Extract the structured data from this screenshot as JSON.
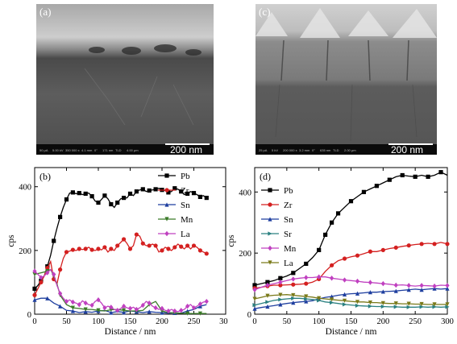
{
  "sem_panels": [
    {
      "letter": "(a)",
      "scale_label": "200 nm",
      "meta": [
        "50 μA",
        "5.00 kV",
        "350 000 x",
        "4.1 mm",
        "0°",
        "171 nm",
        "TLD",
        "4.00 μm"
      ]
    },
    {
      "letter": "(c)",
      "scale_label": "200 nm",
      "meta": [
        "25 pA",
        "5 kV",
        "200 000 x",
        "3.2 mm",
        "0°",
        "635 nm",
        "TLD",
        "2.00 μm"
      ]
    }
  ],
  "chart_data": [
    {
      "panel_label": "(b)",
      "type": "line",
      "xlabel": "Distance / nm",
      "ylabel": "cps",
      "xlim": [
        0,
        300
      ],
      "ylim": [
        0,
        460
      ],
      "xticks": [
        0,
        50,
        100,
        150,
        200,
        250,
        300
      ],
      "yticks": [
        0,
        200,
        400
      ],
      "legend_position": "top-right",
      "series": [
        {
          "name": "Pb",
          "color": "#000000",
          "marker": "square",
          "x": [
            0,
            5,
            10,
            15,
            20,
            25,
            30,
            35,
            40,
            45,
            50,
            55,
            60,
            65,
            70,
            75,
            80,
            85,
            90,
            95,
            100,
            105,
            110,
            115,
            120,
            125,
            130,
            135,
            140,
            145,
            150,
            155,
            160,
            165,
            170,
            175,
            180,
            185,
            190,
            195,
            200,
            205,
            210,
            215,
            220,
            225,
            230,
            235,
            240,
            245,
            250,
            255,
            260,
            265,
            270
          ],
          "y": [
            80,
            90,
            105,
            120,
            150,
            185,
            230,
            270,
            305,
            335,
            360,
            380,
            382,
            378,
            380,
            375,
            378,
            380,
            370,
            355,
            350,
            360,
            372,
            362,
            345,
            335,
            350,
            362,
            365,
            365,
            378,
            372,
            385,
            390,
            392,
            385,
            388,
            390,
            392,
            395,
            390,
            388,
            382,
            385,
            395,
            392,
            385,
            375,
            378,
            385,
            380,
            375,
            368,
            372,
            365
          ]
        },
        {
          "name": "Zr",
          "color": "#d42020",
          "marker": "circle",
          "x": [
            0,
            5,
            10,
            15,
            20,
            25,
            30,
            35,
            40,
            45,
            50,
            55,
            60,
            65,
            70,
            75,
            80,
            85,
            90,
            95,
            100,
            105,
            110,
            115,
            120,
            125,
            130,
            135,
            140,
            145,
            150,
            155,
            160,
            165,
            170,
            175,
            180,
            185,
            190,
            195,
            200,
            205,
            210,
            215,
            220,
            225,
            230,
            235,
            240,
            245,
            250,
            255,
            260,
            265,
            270
          ],
          "y": [
            60,
            80,
            100,
            120,
            145,
            165,
            110,
            95,
            140,
            175,
            195,
            198,
            202,
            200,
            205,
            203,
            205,
            210,
            202,
            200,
            205,
            202,
            210,
            195,
            205,
            200,
            215,
            225,
            235,
            222,
            205,
            215,
            250,
            245,
            222,
            215,
            215,
            220,
            215,
            195,
            200,
            210,
            205,
            200,
            210,
            220,
            212,
            205,
            215,
            205,
            215,
            210,
            200,
            195,
            190
          ]
        },
        {
          "name": "Sn",
          "color": "#1f3f9f",
          "marker": "triangle",
          "x": [
            0,
            10,
            20,
            30,
            40,
            50,
            60,
            70,
            80,
            90,
            100,
            110,
            120,
            130,
            140,
            150,
            160,
            170,
            180,
            190,
            200,
            210,
            220,
            230,
            240,
            250,
            260,
            270
          ],
          "y": [
            45,
            50,
            50,
            35,
            25,
            12,
            10,
            5,
            8,
            6,
            10,
            12,
            5,
            8,
            6,
            10,
            8,
            5,
            8,
            6,
            5,
            3,
            4,
            3,
            10,
            15,
            25,
            30
          ]
        },
        {
          "name": "Mn",
          "color": "#3a7a28",
          "marker": "triangle-down",
          "x": [
            0,
            10,
            20,
            25,
            30,
            35,
            40,
            50,
            60,
            70,
            80,
            90,
            100,
            110,
            120,
            130,
            140,
            150,
            160,
            170,
            180,
            190,
            200,
            210,
            220,
            230,
            240,
            250,
            260,
            270
          ],
          "y": [
            125,
            130,
            135,
            140,
            120,
            95,
            60,
            30,
            20,
            18,
            15,
            15,
            12,
            10,
            14,
            15,
            12,
            10,
            10,
            12,
            30,
            40,
            10,
            5,
            4,
            3,
            2,
            2,
            2,
            2
          ]
        },
        {
          "name": "La",
          "color": "#c040c0",
          "marker": "diamond",
          "x": [
            0,
            5,
            10,
            15,
            20,
            25,
            30,
            35,
            40,
            45,
            50,
            55,
            60,
            65,
            70,
            75,
            80,
            85,
            90,
            95,
            100,
            105,
            110,
            115,
            120,
            125,
            130,
            135,
            140,
            145,
            150,
            155,
            160,
            165,
            170,
            175,
            180,
            185,
            190,
            195,
            200,
            205,
            210,
            215,
            220,
            225,
            230,
            235,
            240,
            245,
            250,
            255,
            260,
            265,
            270
          ],
          "y": [
            135,
            125,
            115,
            120,
            130,
            140,
            125,
            90,
            65,
            50,
            40,
            45,
            38,
            35,
            30,
            42,
            35,
            30,
            28,
            40,
            45,
            35,
            20,
            25,
            22,
            15,
            12,
            18,
            25,
            20,
            18,
            22,
            15,
            20,
            28,
            40,
            35,
            25,
            20,
            15,
            18,
            12,
            10,
            15,
            10,
            8,
            12,
            15,
            25,
            30,
            20,
            25,
            32,
            38,
            40
          ]
        }
      ]
    },
    {
      "panel_label": "(d)",
      "type": "line",
      "xlabel": "Distance / nm",
      "ylabel": "cps",
      "xlim": [
        0,
        300
      ],
      "ylim": [
        0,
        480
      ],
      "xticks": [
        0,
        50,
        100,
        150,
        200,
        250,
        300
      ],
      "yticks": [
        0,
        200,
        400
      ],
      "legend_position": "top-left",
      "series": [
        {
          "name": "Pb",
          "color": "#000000",
          "marker": "square",
          "x": [
            0,
            10,
            20,
            30,
            40,
            50,
            60,
            70,
            80,
            90,
            100,
            105,
            110,
            115,
            120,
            125,
            130,
            140,
            150,
            160,
            170,
            180,
            190,
            200,
            210,
            220,
            230,
            240,
            250,
            260,
            270,
            280,
            290,
            300
          ],
          "y": [
            95,
            100,
            105,
            110,
            118,
            125,
            135,
            150,
            165,
            185,
            210,
            235,
            260,
            280,
            300,
            315,
            330,
            350,
            370,
            385,
            400,
            410,
            420,
            430,
            440,
            450,
            455,
            452,
            450,
            455,
            450,
            455,
            465,
            455
          ]
        },
        {
          "name": "Zr",
          "color": "#d42020",
          "marker": "circle",
          "x": [
            0,
            10,
            20,
            30,
            40,
            50,
            60,
            70,
            80,
            90,
            100,
            110,
            120,
            130,
            140,
            150,
            160,
            170,
            180,
            190,
            200,
            210,
            220,
            230,
            240,
            250,
            260,
            270,
            280,
            290,
            300
          ],
          "y": [
            85,
            88,
            92,
            95,
            95,
            96,
            97,
            98,
            100,
            105,
            115,
            140,
            160,
            175,
            182,
            188,
            192,
            198,
            205,
            205,
            210,
            215,
            218,
            222,
            225,
            228,
            230,
            232,
            230,
            235,
            230
          ]
        },
        {
          "name": "Sn",
          "color": "#1f3f9f",
          "marker": "triangle",
          "x": [
            0,
            10,
            20,
            30,
            40,
            50,
            60,
            70,
            80,
            90,
            100,
            110,
            120,
            130,
            140,
            150,
            160,
            170,
            180,
            190,
            200,
            210,
            220,
            230,
            240,
            250,
            260,
            270,
            280,
            290,
            300
          ],
          "y": [
            18,
            22,
            25,
            28,
            32,
            35,
            38,
            40,
            42,
            44,
            50,
            55,
            58,
            62,
            65,
            67,
            68,
            70,
            72,
            72,
            74,
            75,
            76,
            78,
            80,
            82,
            80,
            82,
            84,
            82,
            84
          ]
        },
        {
          "name": "Sr",
          "color": "#2a8080",
          "marker": "triangle-right",
          "x": [
            0,
            10,
            20,
            30,
            40,
            50,
            60,
            70,
            80,
            90,
            100,
            110,
            120,
            130,
            140,
            150,
            160,
            170,
            180,
            190,
            200,
            210,
            220,
            230,
            240,
            250,
            260,
            270,
            280,
            290,
            300
          ],
          "y": [
            30,
            35,
            40,
            45,
            48,
            50,
            52,
            52,
            50,
            48,
            45,
            40,
            38,
            35,
            32,
            30,
            28,
            27,
            26,
            25,
            25,
            24,
            24,
            23,
            23,
            23,
            24,
            23,
            24,
            23,
            24
          ]
        },
        {
          "name": "Mn",
          "color": "#c040c0",
          "marker": "diamond",
          "x": [
            0,
            10,
            20,
            30,
            40,
            50,
            60,
            70,
            80,
            90,
            100,
            110,
            120,
            130,
            140,
            150,
            160,
            170,
            180,
            190,
            200,
            210,
            220,
            230,
            240,
            250,
            260,
            270,
            280,
            290,
            300
          ],
          "y": [
            80,
            88,
            95,
            100,
            105,
            110,
            115,
            118,
            120,
            120,
            122,
            122,
            118,
            115,
            112,
            110,
            108,
            105,
            104,
            102,
            100,
            98,
            95,
            96,
            94,
            92,
            94,
            93,
            92,
            95,
            94
          ]
        },
        {
          "name": "La",
          "color": "#7a7a1a",
          "marker": "triangle-down",
          "x": [
            0,
            10,
            20,
            30,
            40,
            50,
            60,
            70,
            80,
            90,
            100,
            110,
            120,
            130,
            140,
            150,
            160,
            170,
            180,
            190,
            200,
            210,
            220,
            230,
            240,
            250,
            260,
            270,
            280,
            290,
            300
          ],
          "y": [
            50,
            55,
            60,
            62,
            63,
            64,
            62,
            60,
            58,
            56,
            52,
            50,
            48,
            46,
            44,
            42,
            40,
            40,
            38,
            38,
            36,
            35,
            35,
            34,
            34,
            33,
            33,
            32,
            32,
            32,
            32
          ]
        }
      ]
    }
  ]
}
